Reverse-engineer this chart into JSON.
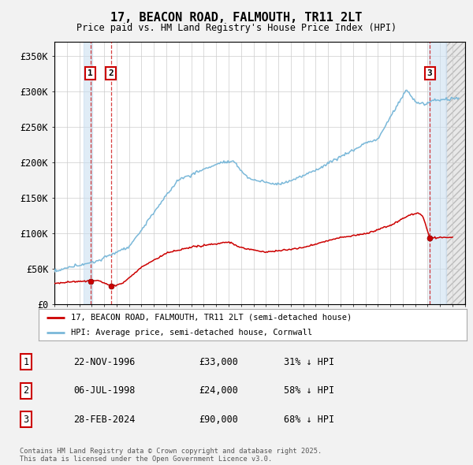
{
  "title": "17, BEACON ROAD, FALMOUTH, TR11 2LT",
  "subtitle": "Price paid vs. HM Land Registry's House Price Index (HPI)",
  "ylim": [
    0,
    370000
  ],
  "xlim_start": 1994.0,
  "xlim_end": 2027.0,
  "yticks": [
    0,
    50000,
    100000,
    150000,
    200000,
    250000,
    300000,
    350000
  ],
  "ytick_labels": [
    "£0",
    "£50K",
    "£100K",
    "£150K",
    "£200K",
    "£250K",
    "£300K",
    "£350K"
  ],
  "bg_color": "#f2f2f2",
  "plot_bg_color": "#ffffff",
  "hpi_line_color": "#7ab8d9",
  "price_line_color": "#cc0000",
  "grid_color": "#cccccc",
  "hatch_color": "#bbbbbb",
  "shade_color": "#c8ddf0",
  "transactions": [
    {
      "label": "1",
      "date": 1996.9,
      "price": 33000
    },
    {
      "label": "2",
      "date": 1998.54,
      "price": 24000
    },
    {
      "label": "3",
      "date": 2024.17,
      "price": 90000
    }
  ],
  "transaction_display": [
    {
      "num": "1",
      "date": "22-NOV-1996",
      "price": "£33,000",
      "pct": "31% ↓ HPI"
    },
    {
      "num": "2",
      "date": "06-JUL-1998",
      "price": "£24,000",
      "pct": "58% ↓ HPI"
    },
    {
      "num": "3",
      "date": "28-FEB-2024",
      "price": "£90,000",
      "pct": "68% ↓ HPI"
    }
  ],
  "legend_line1": "17, BEACON ROAD, FALMOUTH, TR11 2LT (semi-detached house)",
  "legend_line2": "HPI: Average price, semi-detached house, Cornwall",
  "footer_line1": "Contains HM Land Registry data © Crown copyright and database right 2025.",
  "footer_line2": "This data is licensed under the Open Government Licence v3.0."
}
